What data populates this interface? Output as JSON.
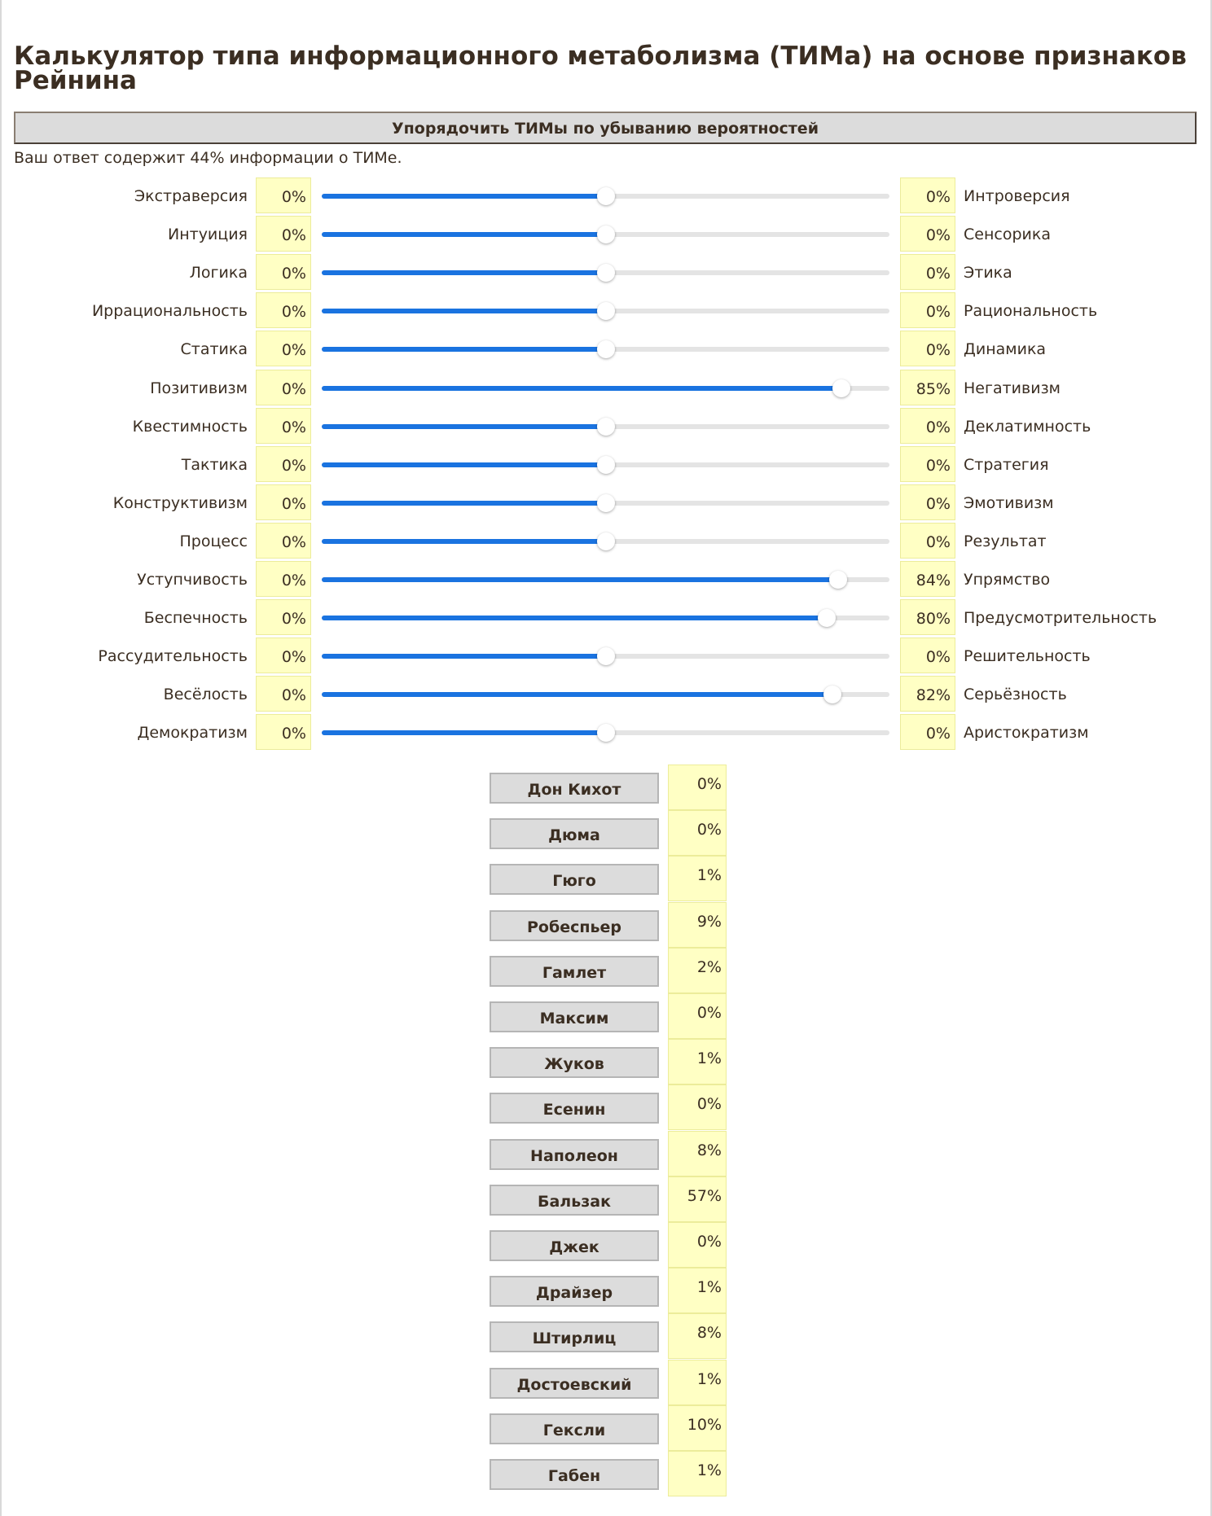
{
  "title": "Калькулятор типа информационного метаболизма (ТИМа) на основе признаков Рейнина",
  "sort_button_label": "Упорядочить ТИМы по убыванию вероятностей",
  "info_text": "Ваш ответ содержит 44% информации о ТИМе.",
  "colors": {
    "text": "#3b2e22",
    "value_box": "#ffffc4",
    "slider_fill": "#1a73e0",
    "slider_track": "#e4e4e4",
    "button_bg": "#dcdcdc"
  },
  "scales": [
    {
      "left": "Экстраверсия",
      "left_value": "0%",
      "right_value": "0%",
      "right": "Интроверсия",
      "position": 0.5
    },
    {
      "left": "Интуиция",
      "left_value": "0%",
      "right_value": "0%",
      "right": "Сенсорика",
      "position": 0.5
    },
    {
      "left": "Логика",
      "left_value": "0%",
      "right_value": "0%",
      "right": "Этика",
      "position": 0.5
    },
    {
      "left": "Иррациональность",
      "left_value": "0%",
      "right_value": "0%",
      "right": "Рациональность",
      "position": 0.5
    },
    {
      "left": "Статика",
      "left_value": "0%",
      "right_value": "0%",
      "right": "Динамика",
      "position": 0.5
    },
    {
      "left": "Позитивизм",
      "left_value": "0%",
      "right_value": "85%",
      "right": "Негативизм",
      "position": 0.915
    },
    {
      "left": "Квестимность",
      "left_value": "0%",
      "right_value": "0%",
      "right": "Деклатимность",
      "position": 0.5
    },
    {
      "left": "Тактика",
      "left_value": "0%",
      "right_value": "0%",
      "right": "Стратегия",
      "position": 0.5
    },
    {
      "left": "Конструктивизм",
      "left_value": "0%",
      "right_value": "0%",
      "right": "Эмотивизм",
      "position": 0.5
    },
    {
      "left": "Процесс",
      "left_value": "0%",
      "right_value": "0%",
      "right": "Результат",
      "position": 0.5
    },
    {
      "left": "Уступчивость",
      "left_value": "0%",
      "right_value": "84%",
      "right": "Упрямство",
      "position": 0.91
    },
    {
      "left": "Беспечность",
      "left_value": "0%",
      "right_value": "80%",
      "right": "Предусмотрительность",
      "position": 0.89
    },
    {
      "left": "Рассудительность",
      "left_value": "0%",
      "right_value": "0%",
      "right": "Решительность",
      "position": 0.5
    },
    {
      "left": "Весёлость",
      "left_value": "0%",
      "right_value": "82%",
      "right": "Серьёзность",
      "position": 0.9
    },
    {
      "left": "Демократизм",
      "left_value": "0%",
      "right_value": "0%",
      "right": "Аристократизм",
      "position": 0.5
    }
  ],
  "types": [
    {
      "name": "Дон Кихот",
      "value": "0%"
    },
    {
      "name": "Дюма",
      "value": "0%"
    },
    {
      "name": "Гюго",
      "value": "1%"
    },
    {
      "name": "Робеспьер",
      "value": "9%"
    },
    {
      "name": "Гамлет",
      "value": "2%"
    },
    {
      "name": "Максим",
      "value": "0%"
    },
    {
      "name": "Жуков",
      "value": "1%"
    },
    {
      "name": "Есенин",
      "value": "0%"
    },
    {
      "name": "Наполеон",
      "value": "8%"
    },
    {
      "name": "Бальзак",
      "value": "57%"
    },
    {
      "name": "Джек",
      "value": "0%"
    },
    {
      "name": "Драйзер",
      "value": "1%"
    },
    {
      "name": "Штирлиц",
      "value": "8%"
    },
    {
      "name": "Достоевский",
      "value": "1%"
    },
    {
      "name": "Гексли",
      "value": "10%"
    },
    {
      "name": "Габен",
      "value": "1%"
    }
  ]
}
